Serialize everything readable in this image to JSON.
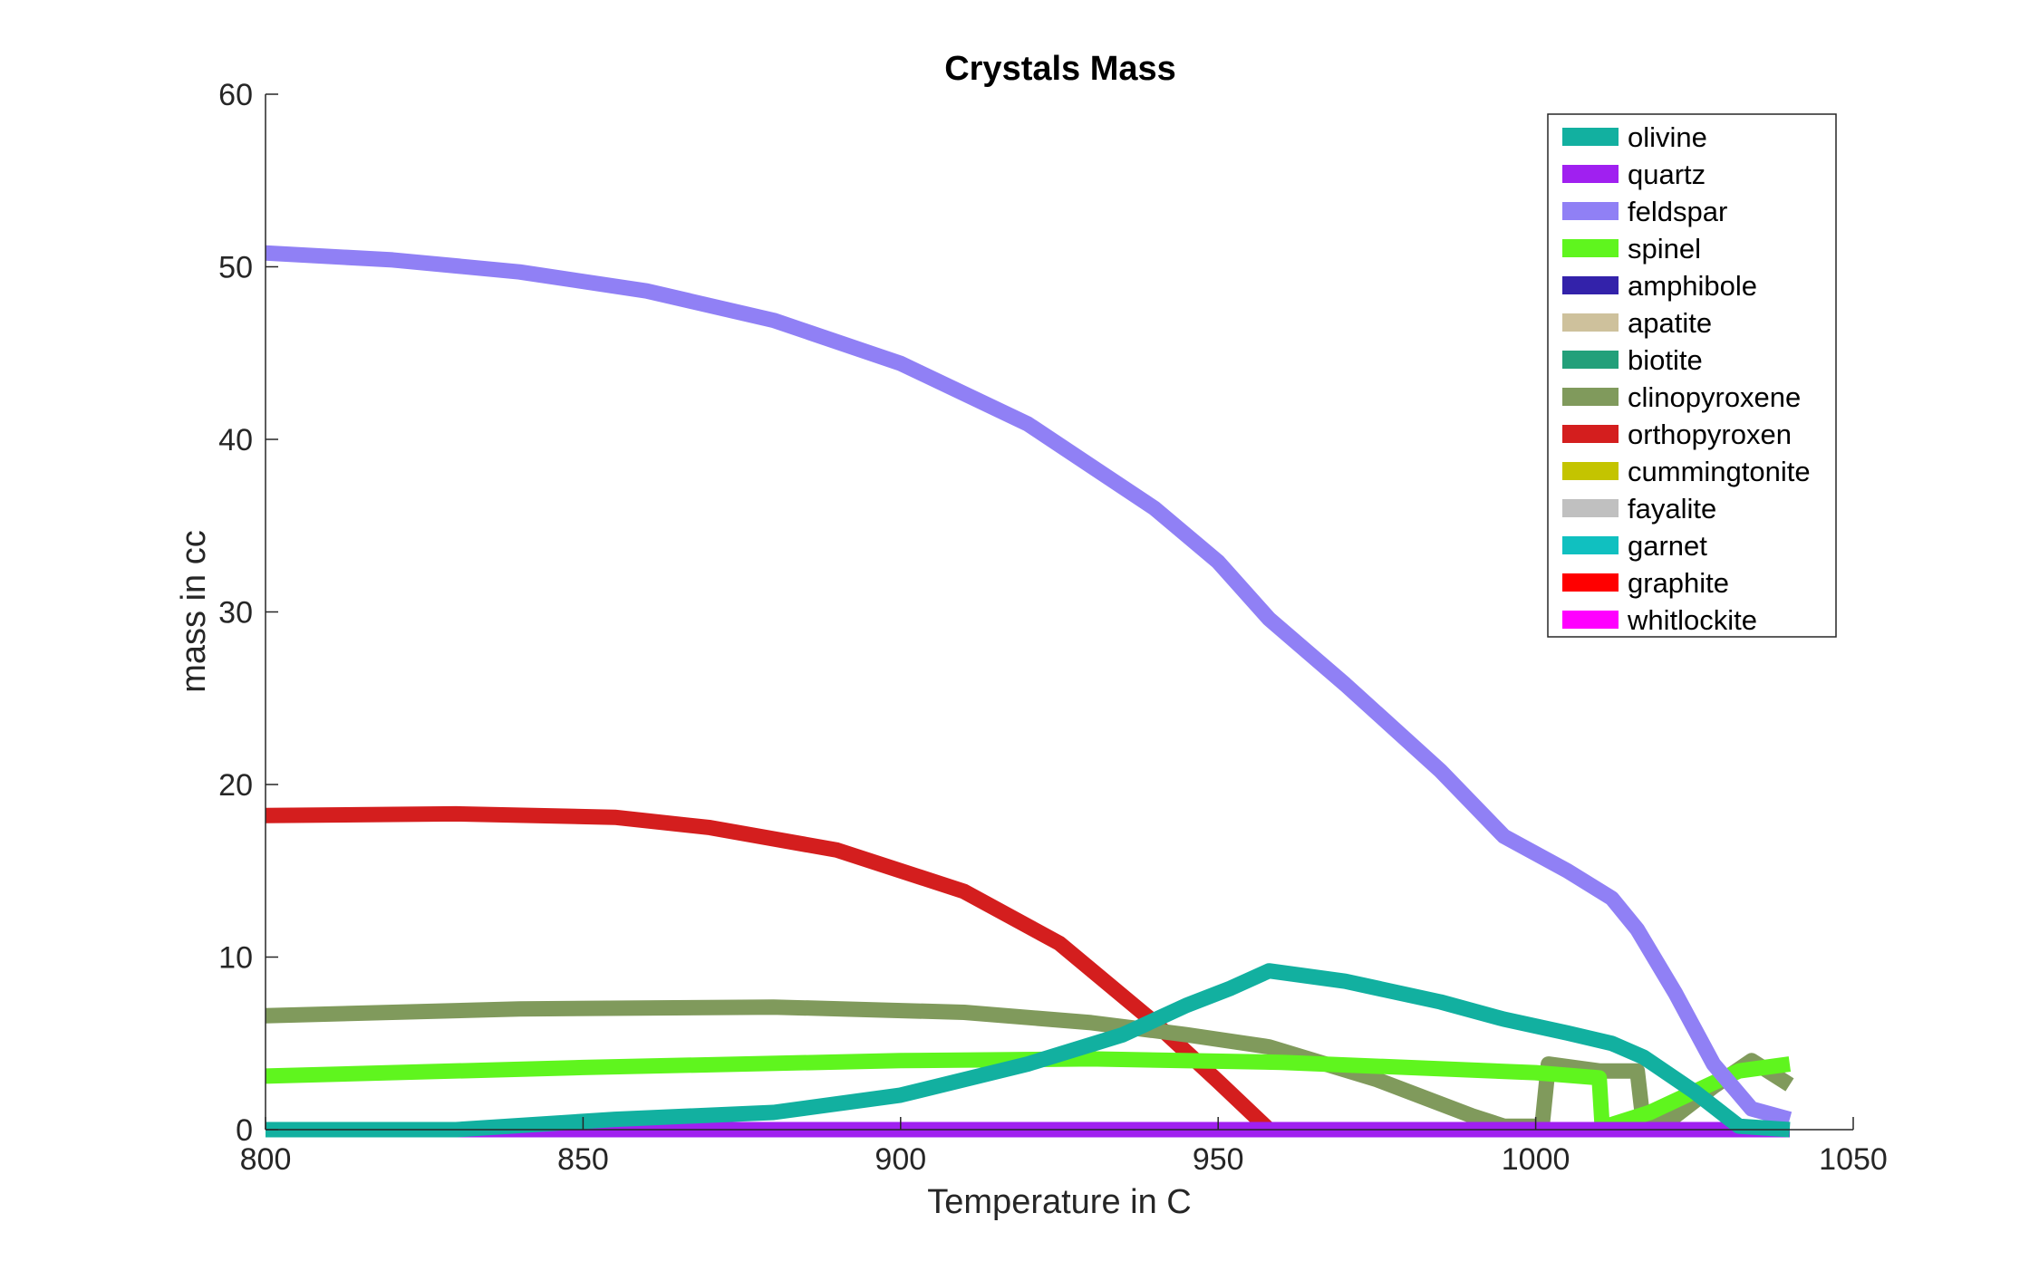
{
  "chart_data": {
    "type": "line",
    "title": "Crystals Mass",
    "xlabel": "Temperature in C",
    "ylabel": "mass in cc",
    "xlim": [
      800,
      1050
    ],
    "ylim": [
      0,
      60
    ],
    "xticks": [
      800,
      850,
      900,
      950,
      1000,
      1050
    ],
    "yticks": [
      0,
      10,
      20,
      30,
      40,
      50,
      60
    ],
    "grid": false,
    "legend_position": "top-right",
    "series": [
      {
        "name": "olivine",
        "color": "#12b0a0",
        "x": [
          800,
          830,
          855,
          880,
          900,
          920,
          935,
          945,
          952,
          958,
          970,
          985,
          995,
          1005,
          1012,
          1017,
          1025,
          1032,
          1040
        ],
        "y": [
          0,
          0,
          0.6,
          1.0,
          2.0,
          3.8,
          5.5,
          7.2,
          8.2,
          9.2,
          8.6,
          7.4,
          6.4,
          5.6,
          5.0,
          4.2,
          2.2,
          0.2,
          0
        ]
      },
      {
        "name": "quartz",
        "color": "#a020f0",
        "x": [
          800,
          1040
        ],
        "y": [
          0,
          0
        ]
      },
      {
        "name": "feldspar",
        "color": "#9080f5",
        "x": [
          800,
          820,
          840,
          860,
          880,
          900,
          920,
          940,
          950,
          958,
          970,
          985,
          995,
          1005,
          1012,
          1016,
          1022,
          1028,
          1034,
          1040
        ],
        "y": [
          50.8,
          50.4,
          49.7,
          48.6,
          46.9,
          44.4,
          40.9,
          36.0,
          32.9,
          29.6,
          25.8,
          20.8,
          17.0,
          15.0,
          13.4,
          11.6,
          7.9,
          3.8,
          1.2,
          0.6
        ]
      },
      {
        "name": "spinel",
        "color": "#5ff51e",
        "x": [
          800,
          850,
          900,
          930,
          960,
          1000,
          1010,
          1010.5,
          1012,
          1018,
          1025,
          1032,
          1040
        ],
        "y": [
          3.1,
          3.6,
          4.0,
          4.1,
          3.9,
          3.3,
          3.0,
          0,
          0.3,
          1.0,
          2.2,
          3.4,
          3.8
        ]
      },
      {
        "name": "amphibole",
        "color": "#3322aa",
        "x": [
          800,
          1040
        ],
        "y": [
          0,
          0
        ]
      },
      {
        "name": "apatite",
        "color": "#cec19c",
        "x": [
          800,
          1040
        ],
        "y": [
          0,
          0
        ]
      },
      {
        "name": "biotite",
        "color": "#23a07a",
        "x": [
          800,
          1040
        ],
        "y": [
          0,
          0
        ]
      },
      {
        "name": "clinopyroxene",
        "color": "#809a5c",
        "x": [
          800,
          840,
          880,
          910,
          930,
          945,
          958,
          975,
          990,
          995,
          1001,
          1002,
          1010,
          1016,
          1017,
          1022,
          1028,
          1034,
          1040
        ],
        "y": [
          6.6,
          7.0,
          7.1,
          6.8,
          6.2,
          5.5,
          4.8,
          2.9,
          0.8,
          0.2,
          0.2,
          3.8,
          3.4,
          3.4,
          0.2,
          0.8,
          2.5,
          4.0,
          2.6
        ]
      },
      {
        "name": "orthopyroxen",
        "color": "#d41e1e",
        "x": [
          800,
          830,
          855,
          870,
          890,
          910,
          925,
          940,
          950,
          958
        ],
        "y": [
          18.2,
          18.3,
          18.1,
          17.5,
          16.2,
          13.8,
          10.8,
          6.2,
          2.8,
          0
        ]
      },
      {
        "name": "cummingtonite",
        "color": "#c4c400",
        "x": [
          800,
          1040
        ],
        "y": [
          0,
          0
        ]
      },
      {
        "name": "fayalite",
        "color": "#c0c0c0",
        "x": [
          800,
          1040
        ],
        "y": [
          0,
          0
        ]
      },
      {
        "name": "garnet",
        "color": "#10c0c0",
        "x": [
          800,
          1040
        ],
        "y": [
          0,
          0
        ]
      },
      {
        "name": "graphite",
        "color": "#ff0000",
        "x": [
          800,
          1040
        ],
        "y": [
          0,
          0
        ]
      },
      {
        "name": "whitlockite",
        "color": "#ff00ff",
        "x": [
          800,
          1040
        ],
        "y": [
          0,
          0
        ]
      }
    ]
  }
}
